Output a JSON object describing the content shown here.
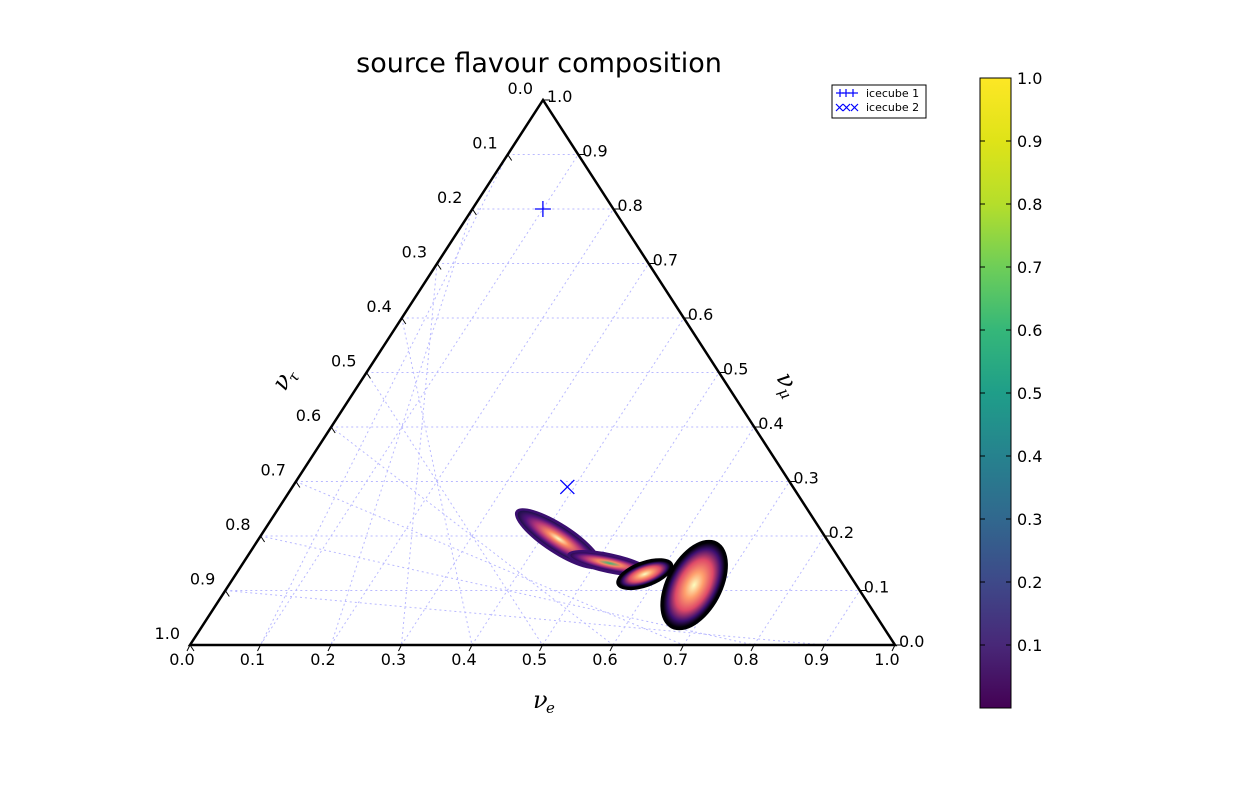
{
  "chart_data": {
    "type": "scatter",
    "title": "source flavour composition",
    "ternary_axes": {
      "bottom": {
        "label": "ν",
        "subscript": "e",
        "ticks": [
          "0.0",
          "0.1",
          "0.2",
          "0.3",
          "0.4",
          "0.5",
          "0.6",
          "0.7",
          "0.8",
          "0.9",
          "1.0"
        ]
      },
      "right": {
        "label": "ν",
        "subscript": "μ",
        "ticks": [
          "0.0",
          "0.1",
          "0.2",
          "0.3",
          "0.4",
          "0.5",
          "0.6",
          "0.7",
          "0.8",
          "0.9",
          "1.0"
        ]
      },
      "left": {
        "label": "ν",
        "subscript": "τ",
        "ticks": [
          "0.0",
          "0.1",
          "0.2",
          "0.3",
          "0.4",
          "0.5",
          "0.6",
          "0.7",
          "0.8",
          "0.9",
          "1.0"
        ]
      }
    },
    "grid": true,
    "legend": {
      "placement": "top-right",
      "entries": [
        {
          "label": "icecube 1",
          "marker": "+"
        },
        {
          "label": "icecube 2",
          "marker": "x"
        }
      ]
    },
    "markers": [
      {
        "name": "icecube 1",
        "marker": "+",
        "nu_e": 0.1,
        "nu_mu": 0.1,
        "nu_tau": 0.8,
        "color": "#0000ff"
      },
      {
        "name": "icecube 2",
        "marker": "x",
        "nu_e": 0.39,
        "nu_mu": 0.32,
        "nu_tau": 0.29,
        "color": "#0000ff"
      }
    ],
    "density_regions": [
      {
        "center": {
          "nu_e": 0.425,
          "nu_mu": 0.38,
          "nu_tau": 0.195
        },
        "extent": "elongated",
        "peak": 0.5
      },
      {
        "center": {
          "nu_e": 0.52,
          "nu_mu": 0.33,
          "nu_tau": 0.15
        },
        "extent": "elongated",
        "peak": 0.8
      },
      {
        "center": {
          "nu_e": 0.58,
          "nu_mu": 0.29,
          "nu_tau": 0.13
        },
        "extent": "compact",
        "peak": 0.55
      },
      {
        "center": {
          "nu_e": 0.66,
          "nu_mu": 0.23,
          "nu_tau": 0.11
        },
        "extent": "compact",
        "peak": 0.55
      }
    ],
    "colorbar": {
      "colormap": "viridis",
      "range": [
        0,
        1.0
      ],
      "ticks": [
        "1.0",
        "0.9",
        "0.8",
        "0.7",
        "0.6",
        "0.5",
        "0.4",
        "0.3",
        "0.2",
        "0.1"
      ]
    }
  }
}
